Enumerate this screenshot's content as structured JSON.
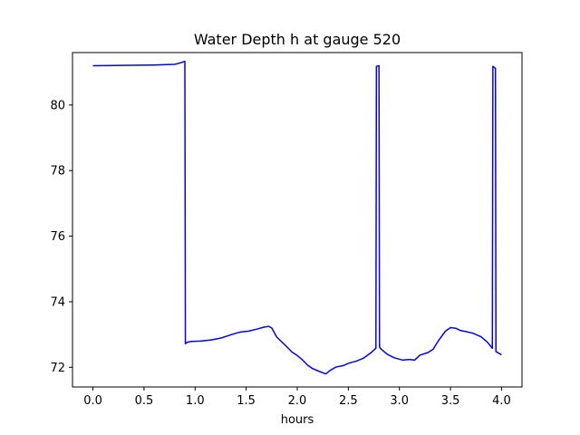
{
  "chart_data": {
    "type": "line",
    "title": "Water Depth h at gauge 520",
    "xlabel": "hours",
    "ylabel": "",
    "xlim": [
      -0.2,
      4.2
    ],
    "ylim": [
      71.4,
      81.6
    ],
    "xticks": [
      0.0,
      0.5,
      1.0,
      1.5,
      2.0,
      2.5,
      3.0,
      3.5,
      4.0
    ],
    "xtick_labels": [
      "0.0",
      "0.5",
      "1.0",
      "1.5",
      "2.0",
      "2.5",
      "3.0",
      "3.5",
      "4.0"
    ],
    "yticks": [
      72,
      74,
      76,
      78,
      80
    ],
    "ytick_labels": [
      "72",
      "74",
      "76",
      "78",
      "80"
    ],
    "grid": false,
    "series": [
      {
        "color": "#0000ff",
        "x": [
          0.0,
          0.3,
          0.6,
          0.8,
          0.85,
          0.9,
          0.905,
          0.92,
          0.96,
          1.05,
          1.15,
          1.25,
          1.32,
          1.4,
          1.45,
          1.52,
          1.6,
          1.67,
          1.72,
          1.75,
          1.8,
          1.9,
          1.95,
          2.0,
          2.05,
          2.1,
          2.15,
          2.22,
          2.28,
          2.32,
          2.38,
          2.45,
          2.5,
          2.58,
          2.65,
          2.72,
          2.77,
          2.775,
          2.8,
          2.805,
          2.82,
          2.88,
          2.95,
          3.03,
          3.1,
          3.15,
          3.2,
          3.28,
          3.33,
          3.38,
          3.45,
          3.5,
          3.55,
          3.6,
          3.65,
          3.72,
          3.8,
          3.86,
          3.91,
          3.915,
          3.94,
          3.945,
          4.0
        ],
        "y": [
          81.2,
          81.21,
          81.22,
          81.24,
          81.28,
          81.33,
          72.72,
          72.76,
          72.79,
          72.8,
          72.83,
          72.89,
          72.96,
          73.04,
          73.08,
          73.1,
          73.16,
          73.22,
          73.25,
          73.2,
          72.92,
          72.62,
          72.46,
          72.36,
          72.23,
          72.07,
          71.96,
          71.87,
          71.8,
          71.9,
          72.01,
          72.05,
          72.12,
          72.19,
          72.28,
          72.44,
          72.58,
          81.18,
          81.2,
          72.62,
          72.56,
          72.4,
          72.29,
          72.22,
          72.24,
          72.22,
          72.37,
          72.45,
          72.55,
          72.8,
          73.1,
          73.21,
          73.19,
          73.12,
          73.09,
          73.04,
          72.93,
          72.77,
          72.58,
          81.18,
          81.12,
          72.48,
          72.38
        ]
      }
    ]
  }
}
